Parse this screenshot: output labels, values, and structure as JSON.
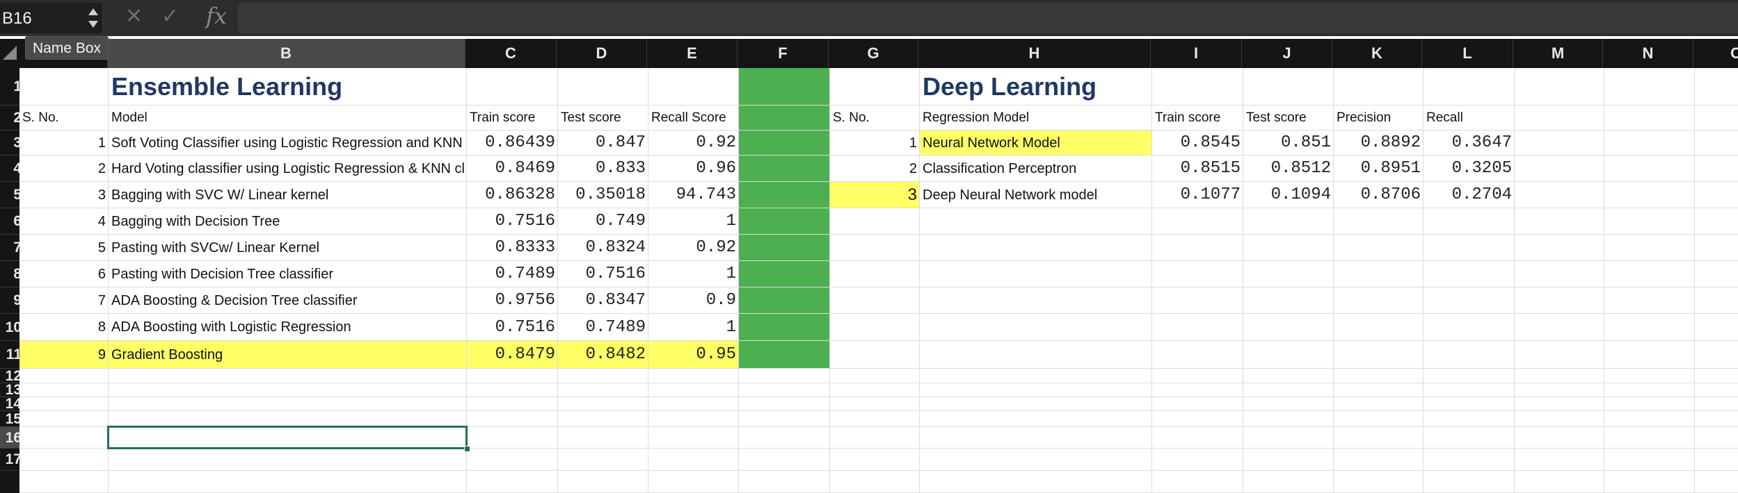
{
  "formula_bar": {
    "name_box": "B16",
    "cancel_icon": "cross-icon",
    "enter_icon": "check-icon",
    "fx_label": "fx",
    "formula": ""
  },
  "tooltip": "Name Box",
  "columns": [
    "A",
    "B",
    "C",
    "D",
    "E",
    "F",
    "G",
    "H",
    "I",
    "J",
    "K",
    "L",
    "M",
    "N",
    "O"
  ],
  "rows": [
    "1",
    "2",
    "3",
    "4",
    "5",
    "6",
    "7",
    "8",
    "9",
    "10",
    "11",
    "12",
    "13",
    "14",
    "15",
    "16",
    "17"
  ],
  "colors": {
    "highlight_yellow": "#ffff66",
    "green_fill": "#4caf50",
    "title_navy": "#1f3864",
    "selection_green": "#217346"
  },
  "ensemble": {
    "title": "Ensemble Learning",
    "headers": {
      "sno": "S. No.",
      "model": "Model",
      "train": "Train score",
      "test": "Test score",
      "recall": "Recall Score"
    },
    "rows": [
      {
        "sno": "1",
        "model": "Soft Voting Classifier using Logistic Regression and KNN c",
        "train": "0.86439",
        "test": "0.847",
        "recall": "0.92"
      },
      {
        "sno": "2",
        "model": "Hard Voting classifier using Logistic Regression & KNN cla",
        "train": "0.8469",
        "test": "0.833",
        "recall": "0.96"
      },
      {
        "sno": "3",
        "model": "Bagging with SVC W/ Linear kernel",
        "train": "0.86328",
        "test": "0.35018",
        "recall": "94.743"
      },
      {
        "sno": "4",
        "model": "Bagging with Decision Tree",
        "train": "0.7516",
        "test": "0.749",
        "recall": "1"
      },
      {
        "sno": "5",
        "model": "Pasting with SVCw/ Linear Kernel",
        "train": "0.8333",
        "test": "0.8324",
        "recall": "0.92"
      },
      {
        "sno": "6",
        "model": "Pasting with Decision Tree classifier",
        "train": "0.7489",
        "test": "0.7516",
        "recall": "1"
      },
      {
        "sno": "7",
        "model": "ADA Boosting & Decision Tree classifier",
        "train": "0.9756",
        "test": "0.8347",
        "recall": "0.9"
      },
      {
        "sno": "8",
        "model": "ADA Boosting with Logistic Regression",
        "train": "0.7516",
        "test": "0.7489",
        "recall": "1"
      },
      {
        "sno": "9",
        "model": "Gradient Boosting",
        "train": "0.8479",
        "test": "0.8482",
        "recall": "0.95"
      }
    ]
  },
  "deep": {
    "title": "Deep Learning",
    "headers": {
      "sno": "S. No.",
      "model": "Regression Model",
      "train": "Train score",
      "test": "Test score",
      "precision": "Precision",
      "recall": "Recall"
    },
    "rows": [
      {
        "sno": "1",
        "model": "Neural Network Model",
        "train": "0.8545",
        "test": "0.851",
        "precision": "0.8892",
        "recall": "0.3647"
      },
      {
        "sno": "2",
        "model": "Classification Perceptron",
        "train": "0.8515",
        "test": "0.8512",
        "precision": "0.8951",
        "recall": "0.3205"
      },
      {
        "sno": "3",
        "model": "Deep Neural Network model",
        "train": "0.1077",
        "test": "0.1094",
        "precision": "0.8706",
        "recall": "0.2704"
      }
    ]
  }
}
